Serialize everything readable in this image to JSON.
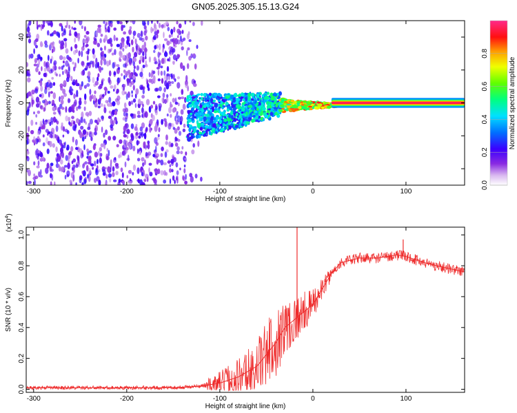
{
  "figure_title": "GN05.2025.305.15.13.G24",
  "chart_data": [
    {
      "type": "heatmap",
      "xlabel": "Height of straight line (km)",
      "ylabel": "Frequency (Hz)",
      "xlim": [
        -308,
        163
      ],
      "ylim": [
        -50,
        50
      ],
      "x_ticks": [
        -300,
        -200,
        -100,
        0,
        100
      ],
      "x_tick_labels": [
        "-300",
        "-200",
        "-100",
        "0",
        "100"
      ],
      "y_ticks": [
        -40,
        -20,
        0,
        20,
        40
      ],
      "y_tick_labels": [
        "-40",
        "-20",
        "0",
        "20",
        "40"
      ],
      "colorbar": {
        "label": "Normalized spectral amplitude",
        "range": [
          0,
          1
        ],
        "ticks": [
          0.0,
          0.2,
          0.4,
          0.6,
          0.8
        ],
        "tick_labels": [
          "0.0",
          "0.2",
          "0.4",
          "0.6",
          "0.8"
        ],
        "colormap": "white-purple-blue-cyan-green-yellow-red-magenta"
      },
      "regions": [
        {
          "x_range": [
            -308,
            -150
          ],
          "freq_range": [
            -50,
            50
          ],
          "amplitude": "0.1-0.25 scattered noise"
        },
        {
          "x_range": [
            -150,
            -120
          ],
          "freq_range": [
            -50,
            50
          ],
          "amplitude": "0.05-0.15 sparse noise"
        },
        {
          "x_range": [
            -130,
            -35
          ],
          "freq_range": [
            -25,
            8
          ],
          "amplitude": "0.2-0.5 signal spread"
        },
        {
          "x_range": [
            -35,
            25
          ],
          "freq_range": [
            -4,
            3
          ],
          "amplitude": "0.5-0.9 converging signal"
        },
        {
          "x_range": [
            25,
            163
          ],
          "freq_range": [
            -1,
            1
          ],
          "amplitude": "0.9-1.0 steady tone"
        }
      ]
    },
    {
      "type": "line",
      "xlabel": "Height of straight line (km)",
      "ylabel": "SNR (10 * v/v)",
      "y_multiplier": "(x10",
      "y_multiplier_exp": "4",
      "y_multiplier_close": ")",
      "xlim": [
        -308,
        163
      ],
      "ylim": [
        -0.02,
        1.05
      ],
      "x_ticks": [
        -300,
        -200,
        -100,
        0,
        100
      ],
      "x_tick_labels": [
        "-300",
        "-200",
        "-100",
        "0",
        "100"
      ],
      "y_ticks": [
        0.0,
        0.2,
        0.4,
        0.6,
        0.8,
        1.0
      ],
      "y_tick_labels": [
        "0.0",
        "0.2",
        "0.4",
        "0.6",
        "0.8",
        "1.0"
      ],
      "color": "#ee2a2a",
      "series": [
        {
          "name": "SNR",
          "x": [
            -308,
            -250,
            -200,
            -150,
            -120,
            -100,
            -80,
            -60,
            -40,
            -30,
            -20,
            -10,
            0,
            10,
            20,
            30,
            50,
            70,
            90,
            100,
            120,
            140,
            163
          ],
          "y": [
            0.01,
            0.01,
            0.01,
            0.01,
            0.02,
            0.04,
            0.08,
            0.15,
            0.3,
            0.4,
            0.45,
            0.5,
            0.55,
            0.65,
            0.75,
            0.82,
            0.85,
            0.85,
            0.87,
            0.86,
            0.82,
            0.79,
            0.76
          ]
        }
      ],
      "spikes": [
        {
          "x": -17,
          "y": 1.05
        },
        {
          "x": 97,
          "y": 0.97
        }
      ]
    }
  ]
}
